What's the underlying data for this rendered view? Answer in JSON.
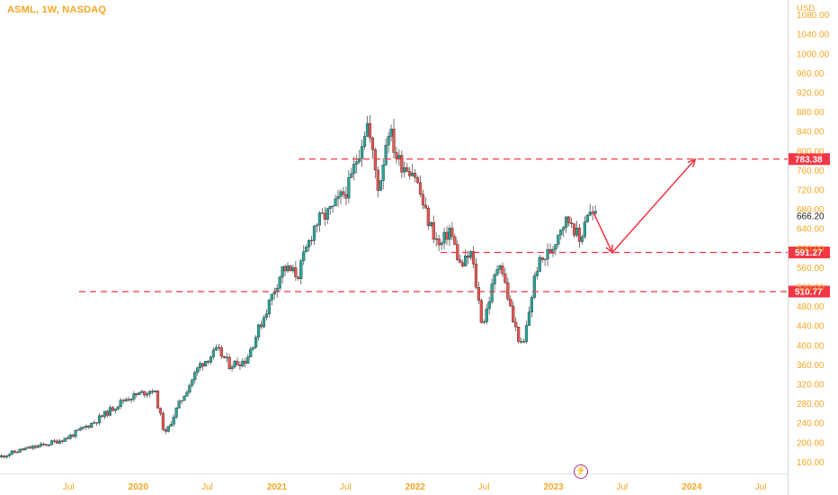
{
  "title": "ASML, 1W, NASDAQ",
  "currency": "USD",
  "chart_data": {
    "type": "candlestick",
    "title": "ASML, 1W, NASDAQ",
    "ylabel": "USD",
    "ylim": [
      120,
      1120
    ],
    "y_ticks": [
      160,
      200,
      240,
      280,
      320,
      360,
      400,
      440,
      480,
      520,
      560,
      600,
      640,
      680,
      720,
      760,
      800,
      840,
      880,
      920,
      960,
      1000,
      1040,
      1080
    ],
    "x_range": [
      "2019-01-01",
      "2024-09-10"
    ],
    "x_ticks": [
      {
        "date": "2019-07-01",
        "label": "Jul"
      },
      {
        "date": "2020-01-01",
        "label": "2020"
      },
      {
        "date": "2020-07-01",
        "label": "Jul"
      },
      {
        "date": "2021-01-01",
        "label": "2021"
      },
      {
        "date": "2021-07-01",
        "label": "Jul"
      },
      {
        "date": "2022-01-01",
        "label": "2022"
      },
      {
        "date": "2022-07-01",
        "label": "Jul"
      },
      {
        "date": "2023-01-01",
        "label": "2023"
      },
      {
        "date": "2023-07-01",
        "label": "Jul"
      },
      {
        "date": "2024-01-01",
        "label": "2024"
      },
      {
        "date": "2024-07-01",
        "label": "Jul"
      }
    ],
    "price_anchors": [
      [
        "2019-01-01",
        170
      ],
      [
        "2019-03-01",
        185
      ],
      [
        "2019-05-01",
        195
      ],
      [
        "2019-07-01",
        210
      ],
      [
        "2019-09-15",
        245
      ],
      [
        "2019-12-01",
        290
      ],
      [
        "2020-02-15",
        310
      ],
      [
        "2020-03-15",
        215
      ],
      [
        "2020-04-15",
        270
      ],
      [
        "2020-06-15",
        360
      ],
      [
        "2020-08-01",
        390
      ],
      [
        "2020-09-01",
        360
      ],
      [
        "2020-10-15",
        370
      ],
      [
        "2020-12-01",
        460
      ],
      [
        "2021-01-20",
        560
      ],
      [
        "2021-03-01",
        545
      ],
      [
        "2021-04-15",
        650
      ],
      [
        "2021-06-01",
        680
      ],
      [
        "2021-07-15",
        730
      ],
      [
        "2021-08-30",
        860
      ],
      [
        "2021-09-30",
        720
      ],
      [
        "2021-10-25",
        850
      ],
      [
        "2021-11-20",
        780
      ],
      [
        "2022-01-01",
        760
      ],
      [
        "2022-02-01",
        670
      ],
      [
        "2022-03-10",
        600
      ],
      [
        "2022-04-05",
        640
      ],
      [
        "2022-05-05",
        560
      ],
      [
        "2022-06-01",
        590
      ],
      [
        "2022-07-01",
        440
      ],
      [
        "2022-08-15",
        580
      ],
      [
        "2022-09-20",
        450
      ],
      [
        "2022-10-15",
        390
      ],
      [
        "2022-11-20",
        560
      ],
      [
        "2023-01-01",
        600
      ],
      [
        "2023-01-25",
        650
      ],
      [
        "2023-02-20",
        660
      ],
      [
        "2023-03-15",
        610
      ],
      [
        "2023-04-01",
        676
      ],
      [
        "2023-04-20",
        666.2
      ]
    ],
    "last_price": 666.2,
    "levels": [
      {
        "value": 783.38,
        "label": "783.38",
        "color": "#f23645",
        "style": "dashed"
      },
      {
        "value": 591.27,
        "label": "591.27",
        "color": "#f23645",
        "style": "dashed"
      },
      {
        "value": 510.77,
        "label": "510.77",
        "color": "#f23645",
        "style": "dashed"
      }
    ],
    "projection": {
      "color": "#f23645",
      "points": [
        [
          "2023-04-15",
          676
        ],
        [
          "2023-06-05",
          591
        ],
        [
          "2024-01-10",
          783
        ]
      ]
    },
    "colors": {
      "up": "#26a69a",
      "down": "#ef5350",
      "axis_text": "#f5a623",
      "last_price_text": "#131722",
      "level_label_bg": "#f23645",
      "level_label_text": "#ffffff"
    }
  }
}
